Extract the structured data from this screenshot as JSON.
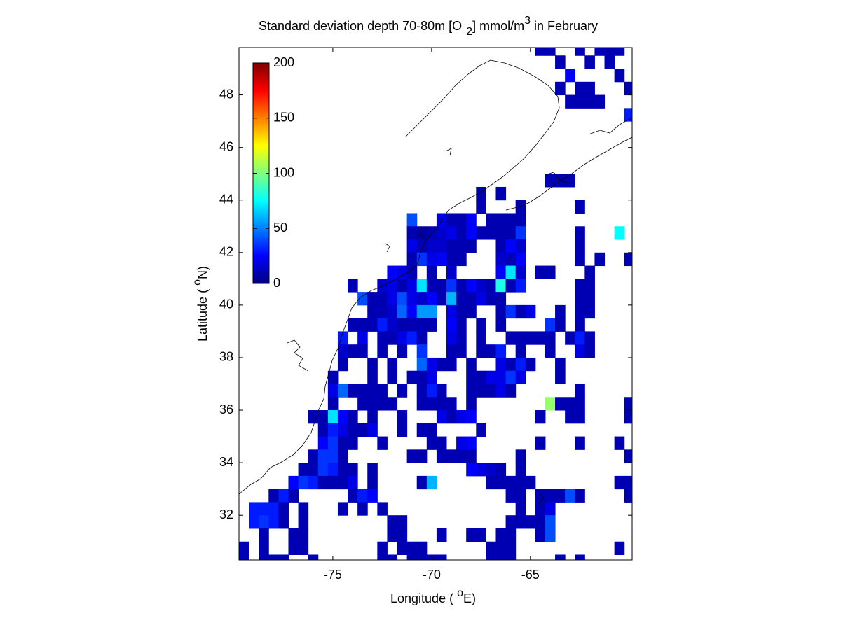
{
  "chart_data": {
    "type": "heatmap",
    "title": [
      "Standard deviation depth 70-80m [O",
      "2",
      "] mmol/m",
      "3",
      " in February"
    ],
    "xlabel": [
      "Longitude ( ",
      "o",
      "E)"
    ],
    "ylabel": [
      "Latitude ( ",
      "o",
      "N)"
    ],
    "xlim": [
      -79.75,
      -59.85
    ],
    "ylim": [
      30.3,
      49.8
    ],
    "xticks": [
      -75,
      -70,
      -65
    ],
    "yticks": [
      32,
      34,
      36,
      38,
      40,
      42,
      44,
      46,
      48
    ],
    "clim": [
      0,
      200
    ],
    "cticks": [
      0,
      50,
      100,
      150,
      200
    ],
    "colormap": "jet",
    "rows": [
      {
        "lat": 49.75,
        "lon": [
          -64.5,
          -64,
          -62.5,
          -61.5,
          -61,
          -60.5
        ],
        "values": [
          10,
          10,
          10,
          10,
          10,
          10
        ]
      },
      {
        "lat": 49.25,
        "lon": [
          -63.5,
          -62,
          -61
        ],
        "values": [
          10,
          10,
          10
        ]
      },
      {
        "lat": 48.75,
        "lon": [
          -63,
          -60.5
        ],
        "values": [
          25,
          10
        ]
      },
      {
        "lat": 48.25,
        "lon": [
          -63.5,
          -62.5,
          -62,
          -60
        ],
        "values": [
          10,
          10,
          10,
          10
        ]
      },
      {
        "lat": 47.75,
        "lon": [
          -63,
          -62.5,
          -62,
          -61.5
        ],
        "values": [
          10,
          10,
          10,
          10
        ]
      },
      {
        "lat": 47.25,
        "lon": [
          -60
        ],
        "values": [
          30
        ]
      },
      {
        "lat": 44.75,
        "lon": [
          -64,
          -63.5,
          -63
        ],
        "values": [
          10,
          10,
          10
        ]
      },
      {
        "lat": 44.25,
        "lon": [
          -67.5,
          -66.5
        ],
        "values": [
          10,
          10
        ]
      },
      {
        "lat": 43.75,
        "lon": [
          -67.5,
          -65.5,
          -62.5
        ],
        "values": [
          10,
          10,
          10
        ]
      },
      {
        "lat": 43.25,
        "lon": [
          -71,
          -69.5,
          -69,
          -68.5,
          -68,
          -67,
          -66.5,
          -66,
          -65.5
        ],
        "values": [
          40,
          20,
          10,
          10,
          25,
          10,
          10,
          10,
          10
        ]
      },
      {
        "lat": 42.75,
        "lon": [
          -71,
          -70.5,
          -70,
          -69.5,
          -69,
          -68.5,
          -68,
          -67.5,
          -67,
          -66.5,
          -66,
          -65.5,
          -62.5,
          -60.5
        ],
        "values": [
          10,
          5,
          10,
          15,
          20,
          10,
          25,
          10,
          10,
          10,
          10,
          35,
          10,
          75
        ]
      },
      {
        "lat": 42.25,
        "lon": [
          -71,
          -70.5,
          -70,
          -69.5,
          -69,
          -68.5,
          -68,
          -66.5,
          -66,
          -65.5,
          -62.5
        ],
        "values": [
          20,
          10,
          15,
          15,
          10,
          10,
          10,
          10,
          25,
          15,
          10
        ]
      },
      {
        "lat": 41.75,
        "lon": [
          -71,
          -70.5,
          -70,
          -69.5,
          -69,
          -68.5,
          -66.5,
          -66,
          -65.5,
          -62.5,
          -61.5,
          -60
        ],
        "values": [
          10,
          35,
          20,
          25,
          10,
          10,
          15,
          10,
          25,
          10,
          10,
          10
        ]
      },
      {
        "lat": 41.25,
        "lon": [
          -72,
          -71.5,
          -71,
          -70,
          -69,
          -66.5,
          -66,
          -65.5,
          -64.5,
          -64,
          -62
        ],
        "values": [
          25,
          20,
          10,
          10,
          15,
          25,
          70,
          15,
          10,
          10,
          10
        ]
      },
      {
        "lat": 40.75,
        "lon": [
          -74,
          -72.5,
          -72,
          -71.5,
          -71,
          -70.5,
          -70,
          -69.5,
          -69,
          -68.5,
          -68,
          -67.5,
          -67,
          -66.5,
          -66,
          -65.5,
          -62.5,
          -62
        ],
        "values": [
          10,
          15,
          20,
          10,
          20,
          70,
          10,
          10,
          35,
          10,
          25,
          15,
          10,
          80,
          10,
          30,
          10,
          10
        ]
      },
      {
        "lat": 40.25,
        "lon": [
          -73.5,
          -73,
          -72.5,
          -72,
          -71.5,
          -71,
          -70.5,
          -70,
          -69.5,
          -69,
          -68.5,
          -68,
          -67.5,
          -67,
          -66.5,
          -62.5,
          -62
        ],
        "values": [
          40,
          10,
          10,
          20,
          40,
          20,
          15,
          25,
          10,
          60,
          10,
          10,
          20,
          10,
          10,
          10,
          10
        ]
      },
      {
        "lat": 39.75,
        "lon": [
          -73,
          -72.5,
          -72,
          -71.5,
          -71,
          -70.5,
          -70,
          -69,
          -68.5,
          -68,
          -66.5,
          -66,
          -65.5,
          -65,
          -63.5,
          -62.5,
          -62
        ],
        "values": [
          10,
          10,
          15,
          45,
          25,
          55,
          55,
          20,
          10,
          10,
          10,
          35,
          10,
          20,
          10,
          10,
          10
        ]
      },
      {
        "lat": 39.25,
        "lon": [
          -74,
          -73.5,
          -73,
          -72.5,
          -72,
          -71.5,
          -71,
          -70.5,
          -70,
          -69,
          -68.5,
          -67.5,
          -66.5,
          -64,
          -63.5,
          -62.5
        ],
        "values": [
          10,
          10,
          10,
          30,
          15,
          10,
          10,
          10,
          10,
          25,
          10,
          10,
          10,
          35,
          10,
          10
        ]
      },
      {
        "lat": 38.75,
        "lon": [
          -74.5,
          -73.5,
          -72.5,
          -72,
          -71.5,
          -71,
          -70.5,
          -69,
          -68.5,
          -67.5,
          -66,
          -65.5,
          -65,
          -64.5,
          -64,
          -63,
          -62.5,
          -62
        ],
        "values": [
          30,
          20,
          10,
          10,
          20,
          30,
          10,
          20,
          10,
          10,
          10,
          10,
          10,
          10,
          10,
          10,
          30,
          10
        ]
      },
      {
        "lat": 38.25,
        "lon": [
          -74.5,
          -74,
          -73.5,
          -72.5,
          -71.5,
          -70.5,
          -69,
          -68.5,
          -67.5,
          -67,
          -66.5,
          -65.5,
          -64,
          -62.5,
          -62
        ],
        "values": [
          15,
          10,
          10,
          10,
          10,
          35,
          10,
          10,
          10,
          10,
          30,
          10,
          10,
          20,
          10
        ]
      },
      {
        "lat": 37.75,
        "lon": [
          -74.5,
          -73,
          -72,
          -70.5,
          -70,
          -69.5,
          -69,
          -68,
          -66.5,
          -66,
          -65.5,
          -65,
          -63.5
        ],
        "values": [
          10,
          10,
          10,
          45,
          20,
          10,
          10,
          10,
          20,
          10,
          30,
          10,
          10
        ]
      },
      {
        "lat": 37.25,
        "lon": [
          -75,
          -73,
          -72,
          -71,
          -70.5,
          -70,
          -68,
          -67.5,
          -67,
          -66.5,
          -66,
          -65.5,
          -63.5
        ],
        "values": [
          10,
          10,
          10,
          10,
          10,
          20,
          10,
          10,
          20,
          20,
          35,
          20,
          10
        ]
      },
      {
        "lat": 36.75,
        "lon": [
          -75,
          -74.5,
          -74,
          -73.5,
          -73,
          -72.5,
          -71.5,
          -70.5,
          -70,
          -69.5,
          -68,
          -67.5,
          -67,
          -66.5,
          -66,
          -62.5
        ],
        "values": [
          20,
          45,
          10,
          10,
          10,
          10,
          10,
          10,
          30,
          10,
          10,
          10,
          10,
          20,
          10,
          10
        ]
      },
      {
        "lat": 36.25,
        "lon": [
          -75,
          -73.5,
          -73,
          -72.5,
          -72,
          -70.5,
          -70,
          -69.5,
          -69,
          -68,
          -64,
          -63.5,
          -63,
          -62.5,
          -60
        ],
        "values": [
          10,
          10,
          10,
          10,
          10,
          10,
          10,
          10,
          10,
          10,
          105,
          10,
          10,
          10,
          10
        ]
      },
      {
        "lat": 35.75,
        "lon": [
          -76,
          -75.5,
          -75,
          -74.5,
          -74,
          -73,
          -71.5,
          -69.5,
          -69,
          -68.5,
          -68,
          -64.5,
          -63,
          -62.5,
          -60
        ],
        "values": [
          10,
          10,
          70,
          25,
          10,
          10,
          10,
          20,
          10,
          20,
          25,
          10,
          10,
          10,
          10
        ]
      },
      {
        "lat": 35.25,
        "lon": [
          -75.5,
          -75,
          -74.5,
          -74,
          -73.5,
          -73,
          -71.5,
          -70.5,
          -70,
          -67.5
        ],
        "values": [
          10,
          30,
          20,
          10,
          10,
          20,
          10,
          10,
          10,
          10
        ]
      },
      {
        "lat": 34.75,
        "lon": [
          -75.5,
          -75,
          -74.5,
          -74,
          -72.5,
          -70,
          -69.5,
          -68.5,
          -68,
          -64.5,
          -62.5,
          -60.5
        ],
        "values": [
          25,
          35,
          10,
          10,
          10,
          10,
          10,
          20,
          25,
          10,
          10,
          10
        ]
      },
      {
        "lat": 34.25,
        "lon": [
          -76,
          -75.5,
          -75,
          -74.5,
          -71,
          -70.5,
          -69.5,
          -69,
          -68.5,
          -68,
          -65.5,
          -60
        ],
        "values": [
          10,
          35,
          35,
          10,
          10,
          10,
          10,
          10,
          10,
          10,
          10,
          10
        ]
      },
      {
        "lat": 33.75,
        "lon": [
          -76.5,
          -76,
          -75.5,
          -75,
          -74.5,
          -74,
          -73,
          -68,
          -67.5,
          -67,
          -66.5,
          -65.5
        ],
        "values": [
          10,
          10,
          35,
          30,
          10,
          10,
          10,
          25,
          20,
          15,
          10,
          10
        ]
      },
      {
        "lat": 33.25,
        "lon": [
          -77,
          -76.5,
          -76,
          -75.5,
          -75,
          -74.5,
          -74,
          -73,
          -70.5,
          -70,
          -67,
          -66.5,
          -66,
          -65.5,
          -65,
          -60.5,
          -60
        ],
        "values": [
          25,
          35,
          30,
          10,
          10,
          10,
          20,
          10,
          10,
          60,
          10,
          10,
          10,
          10,
          10,
          10,
          10
        ]
      },
      {
        "lat": 32.75,
        "lon": [
          -78,
          -77.5,
          -77,
          -74,
          -73.5,
          -73,
          -66,
          -65.5,
          -64.5,
          -64,
          -63.5,
          -63,
          -62.5,
          -60
        ],
        "values": [
          10,
          30,
          10,
          10,
          30,
          25,
          10,
          10,
          10,
          10,
          10,
          40,
          10,
          10
        ]
      },
      {
        "lat": 32.25,
        "lon": [
          -79,
          -78.5,
          -78,
          -77.5,
          -76.5,
          -74.5,
          -73.5,
          -72.5,
          -65.5,
          -64.5,
          -64
        ],
        "values": [
          30,
          30,
          30,
          10,
          10,
          10,
          10,
          10,
          10,
          10,
          20
        ]
      },
      {
        "lat": 31.75,
        "lon": [
          -79,
          -78.5,
          -78,
          -77.5,
          -76.5,
          -72,
          -71.5,
          -66,
          -65.5,
          -65,
          -64.5,
          -64
        ],
        "values": [
          30,
          35,
          30,
          10,
          10,
          10,
          10,
          10,
          10,
          10,
          10,
          40
        ]
      },
      {
        "lat": 31.25,
        "lon": [
          -78.5,
          -77,
          -76.5,
          -72,
          -71.5,
          -69.5,
          -68,
          -67.5,
          -66.5,
          -66,
          -64.5,
          -64
        ],
        "values": [
          10,
          10,
          10,
          10,
          10,
          10,
          10,
          10,
          10,
          10,
          10,
          40
        ]
      },
      {
        "lat": 30.75,
        "lon": [
          -79.5,
          -78.5,
          -77,
          -76.5,
          -72.5,
          -71.5,
          -71,
          -70.5,
          -67,
          -66.5,
          -66,
          -60.5
        ],
        "values": [
          10,
          10,
          10,
          10,
          10,
          10,
          10,
          10,
          10,
          10,
          10,
          10
        ]
      },
      {
        "lat": 30.25,
        "lon": [
          -79.5,
          -78.5,
          -78,
          -77.5,
          -76,
          -72.5,
          -72,
          -71,
          -70.5,
          -70,
          -69.5,
          -67,
          -66.5,
          -66,
          -63.5,
          -62.5
        ],
        "values": [
          10,
          10,
          10,
          10,
          10,
          10,
          10,
          10,
          10,
          10,
          10,
          10,
          10,
          10,
          10,
          10
        ]
      }
    ]
  }
}
